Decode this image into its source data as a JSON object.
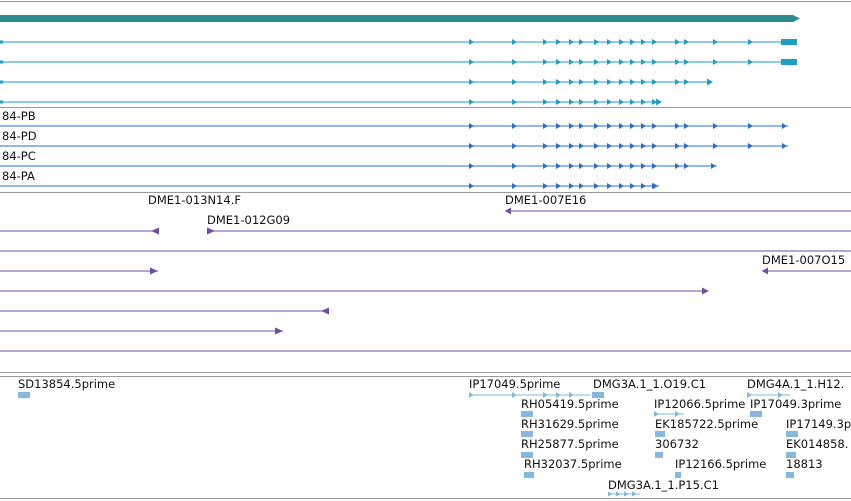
{
  "colors": {
    "gene": "#2e8b8b",
    "transcript": "#1e9ec2",
    "cds": "#2a6fd0",
    "clone": "#6e4ea8",
    "est": "#86b7dc",
    "separator": "#9a9a9a"
  },
  "tracks": {
    "cds_labels": [
      "84-PB",
      "84-PD",
      "84-PC",
      "84-PA"
    ],
    "clones": [
      "DME1-013N14.F",
      "DME1-012G09",
      "DME1-007E16",
      "DME1-007O15"
    ],
    "ests": [
      "SD13854.5prime",
      "IP17049.5prime",
      "DMG3A.1_1.O19.C1",
      "DMG4A.1_1.H12.",
      "RH05419.5prime",
      "IP12066.5prime",
      "IP17049.3prime",
      "RH31629.5prime",
      "EK185722.5prime",
      "IP17149.3p",
      "306732",
      "EK014858.",
      "RH25877.5prime",
      "RH32037.5prime",
      "IP12166.5prime",
      "18813",
      "DMG3A.1_1.P15.C1"
    ]
  }
}
